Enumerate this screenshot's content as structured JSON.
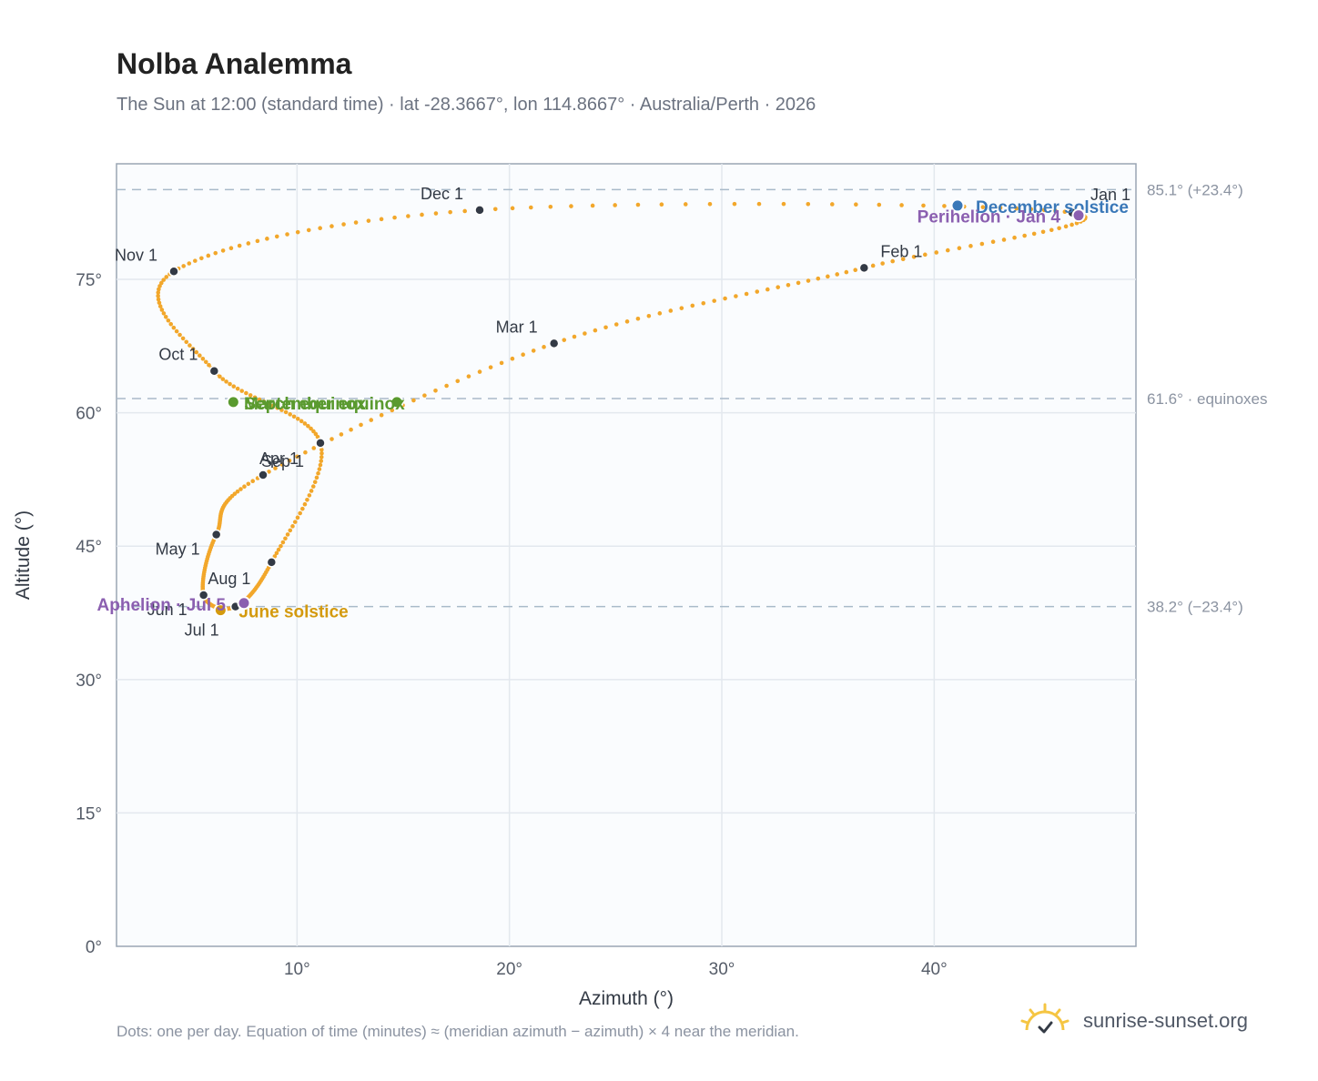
{
  "header": {
    "title": "Nolba Analemma",
    "subtitle": "The Sun at 12:00 (standard time) · lat -28.3667°, lon 114.8667° · Australia/Perth · 2026"
  },
  "chart_data": {
    "type": "scatter",
    "xlabel": "Azimuth (°)",
    "ylabel": "Altitude (°)",
    "xlim": [
      1.5,
      49.5
    ],
    "ylim": [
      0,
      88
    ],
    "x_ticks": [
      {
        "v": 10,
        "label": "10°"
      },
      {
        "v": 20,
        "label": "20°"
      },
      {
        "v": 30,
        "label": "30°"
      },
      {
        "v": 40,
        "label": "40°"
      }
    ],
    "y_ticks": [
      {
        "v": 0,
        "label": "0°"
      },
      {
        "v": 15,
        "label": "15°"
      },
      {
        "v": 30,
        "label": "30°"
      },
      {
        "v": 45,
        "label": "45°"
      },
      {
        "v": 60,
        "label": "60°"
      },
      {
        "v": 75,
        "label": "75°"
      }
    ],
    "grid": true,
    "reference_lines": [
      {
        "y": 85.1,
        "label": "85.1° (+23.4°)"
      },
      {
        "y": 61.6,
        "label": "61.6° · equinoxes"
      },
      {
        "y": 38.2,
        "label": "38.2° (−23.4°)"
      }
    ],
    "series": [
      {
        "description_of_points": "one per day",
        "months": [
          {
            "label": "Jan 1",
            "x": 46.5,
            "y": 82.5
          },
          {
            "label": "Feb 1",
            "x": 36.7,
            "y": 76.3
          },
          {
            "label": "Mar 1",
            "x": 22.1,
            "y": 67.8
          },
          {
            "label": "Apr 1",
            "x": 8.4,
            "y": 53.0
          },
          {
            "label": "May 1",
            "x": 6.2,
            "y": 46.3
          },
          {
            "label": "Jun 1",
            "x": 5.6,
            "y": 39.5
          },
          {
            "label": "Jul 1",
            "x": 7.1,
            "y": 38.2
          },
          {
            "label": "Aug 1",
            "x": 8.8,
            "y": 43.2
          },
          {
            "label": "Sep 1",
            "x": 11.1,
            "y": 56.6
          },
          {
            "label": "Oct 1",
            "x": 6.1,
            "y": 64.7
          },
          {
            "label": "Nov 1",
            "x": 4.2,
            "y": 75.9
          },
          {
            "label": "Dec 1",
            "x": 18.6,
            "y": 82.8
          }
        ]
      }
    ],
    "events": [
      {
        "label": "December solstice",
        "x": 41.1,
        "y": 83.3,
        "color": "#3a78b8"
      },
      {
        "label": "Perihelion · Jan 4",
        "x": 46.8,
        "y": 82.2,
        "color": "#8b5fb0"
      },
      {
        "label": "March equinox",
        "x": 14.7,
        "y": 61.2,
        "color": "#5a9a2f"
      },
      {
        "label": "September equinox",
        "x": 7.0,
        "y": 61.2,
        "color": "#5a9a2f"
      },
      {
        "label": "June solstice",
        "x": 6.4,
        "y": 37.8,
        "color": "#d49a0e"
      },
      {
        "label": "Aphelion · Jul 5",
        "x": 7.5,
        "y": 38.6,
        "color": "#8b5fb0"
      }
    ],
    "colors": {
      "path": "#f2a72b",
      "month_marker": "#333a45",
      "reference_line": "#a9bac9"
    }
  },
  "footer": {
    "note": "Dots: one per day. Equation of time (minutes) ≈ (meridian azimuth − azimuth) × 4 near the meridian.",
    "brand": "sunrise-sunset.org"
  }
}
